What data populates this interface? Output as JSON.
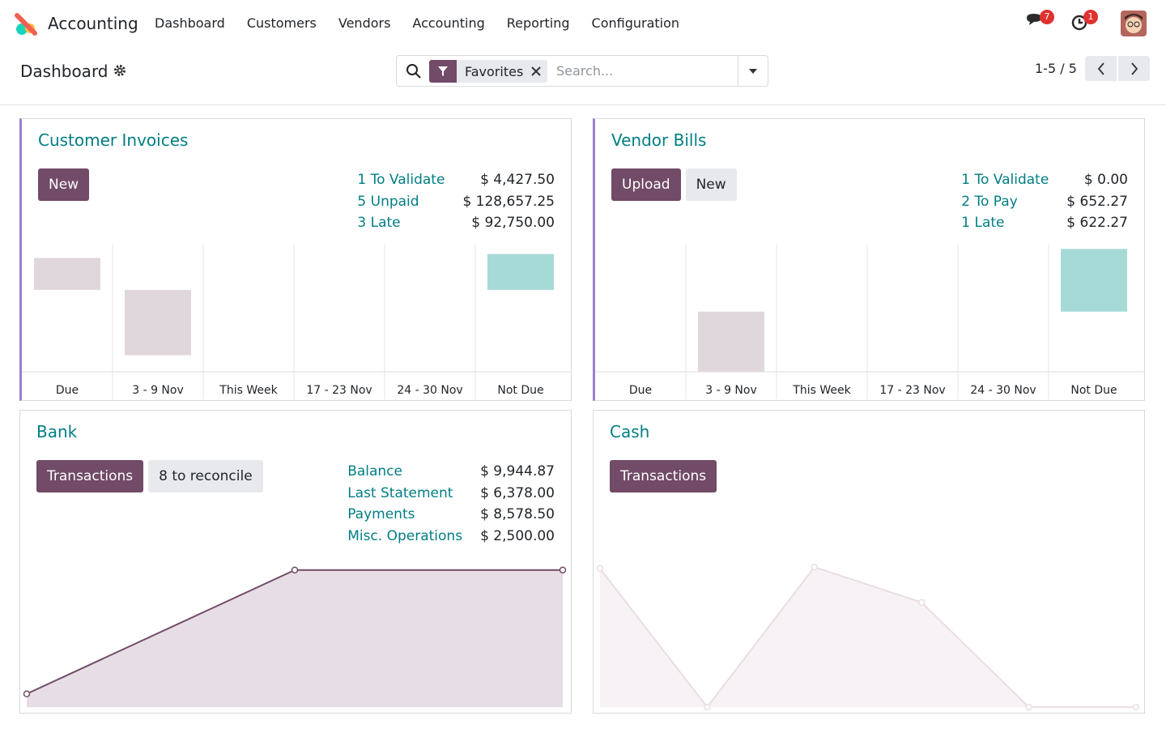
{
  "nav": {
    "app": "Accounting",
    "menu": [
      "Dashboard",
      "Customers",
      "Vendors",
      "Accounting",
      "Reporting",
      "Configuration"
    ],
    "badges": [
      7,
      1
    ]
  },
  "control": {
    "title": "Dashboard",
    "facet": "Favorites",
    "search_placeholder": "Search...",
    "pager": "1-5 / 5"
  },
  "cards": [
    {
      "title": "Customer Invoices",
      "buttons": [
        {
          "label": "New",
          "primary": true
        }
      ],
      "stats": [
        [
          "1 To Validate",
          "$ 4,427.50"
        ],
        [
          "5 Unpaid",
          "$ 128,657.25"
        ],
        [
          "3 Late",
          "$ 92,750.00"
        ]
      ],
      "chart_data": {
        "type": "bar",
        "categories": [
          "Due",
          "3 - 9 Nov",
          "This Week",
          "17 - 23 Nov",
          "24 - 30 Nov",
          "Not Due"
        ],
        "values": [
          [
            64,
            89
          ],
          [
            13,
            64
          ],
          null,
          null,
          null,
          [
            64,
            92
          ]
        ],
        "colors": [
          "#e0d7dc",
          "#e0d7dc",
          "#e0d7dc",
          "#e0d7dc",
          "#e0d7dc",
          "#a6dad6"
        ],
        "ylim": [
          0,
          100
        ]
      }
    },
    {
      "title": "Vendor Bills",
      "buttons": [
        {
          "label": "Upload",
          "primary": true
        },
        {
          "label": "New",
          "primary": false
        }
      ],
      "stats": [
        [
          "1 To Validate",
          "$ 0.00"
        ],
        [
          "2 To Pay",
          "$ 652.27"
        ],
        [
          "1 Late",
          "$ 622.27"
        ]
      ],
      "chart_data": {
        "type": "bar",
        "categories": [
          "Due",
          "3 - 9 Nov",
          "This Week",
          "17 - 23 Nov",
          "24 - 30 Nov",
          "Not Due"
        ],
        "values": [
          null,
          [
            0,
            47
          ],
          null,
          null,
          null,
          [
            47,
            96
          ]
        ],
        "colors": [
          "#e0d7dc",
          "#e0d7dc",
          "#e0d7dc",
          "#e0d7dc",
          "#e0d7dc",
          "#a6dad6"
        ],
        "ylim": [
          0,
          100
        ]
      }
    },
    {
      "title": "Bank",
      "buttons": [
        {
          "label": "Transactions",
          "primary": true
        },
        {
          "label": "8 to reconcile",
          "primary": false
        }
      ],
      "stats": [
        [
          "Balance",
          "$ 9,944.87"
        ],
        [
          "Last Statement",
          "$ 6,378.00"
        ],
        [
          "Payments",
          "$ 8,578.50"
        ],
        [
          "Misc. Operations",
          "$ 2,500.00"
        ]
      ],
      "chart_data": {
        "type": "line",
        "values": [
          9,
          93,
          93
        ],
        "color": "#714b67",
        "fill": "#e7dde4",
        "ylim": [
          0,
          100
        ]
      }
    },
    {
      "title": "Cash",
      "buttons": [
        {
          "label": "Transactions",
          "primary": true
        }
      ],
      "stats": [],
      "chart_data": {
        "type": "line",
        "values": [
          94,
          0,
          95,
          71,
          0,
          0
        ],
        "color": "#eadde3",
        "fill": "#f7f2f5",
        "ylim": [
          0,
          100
        ]
      }
    }
  ]
}
